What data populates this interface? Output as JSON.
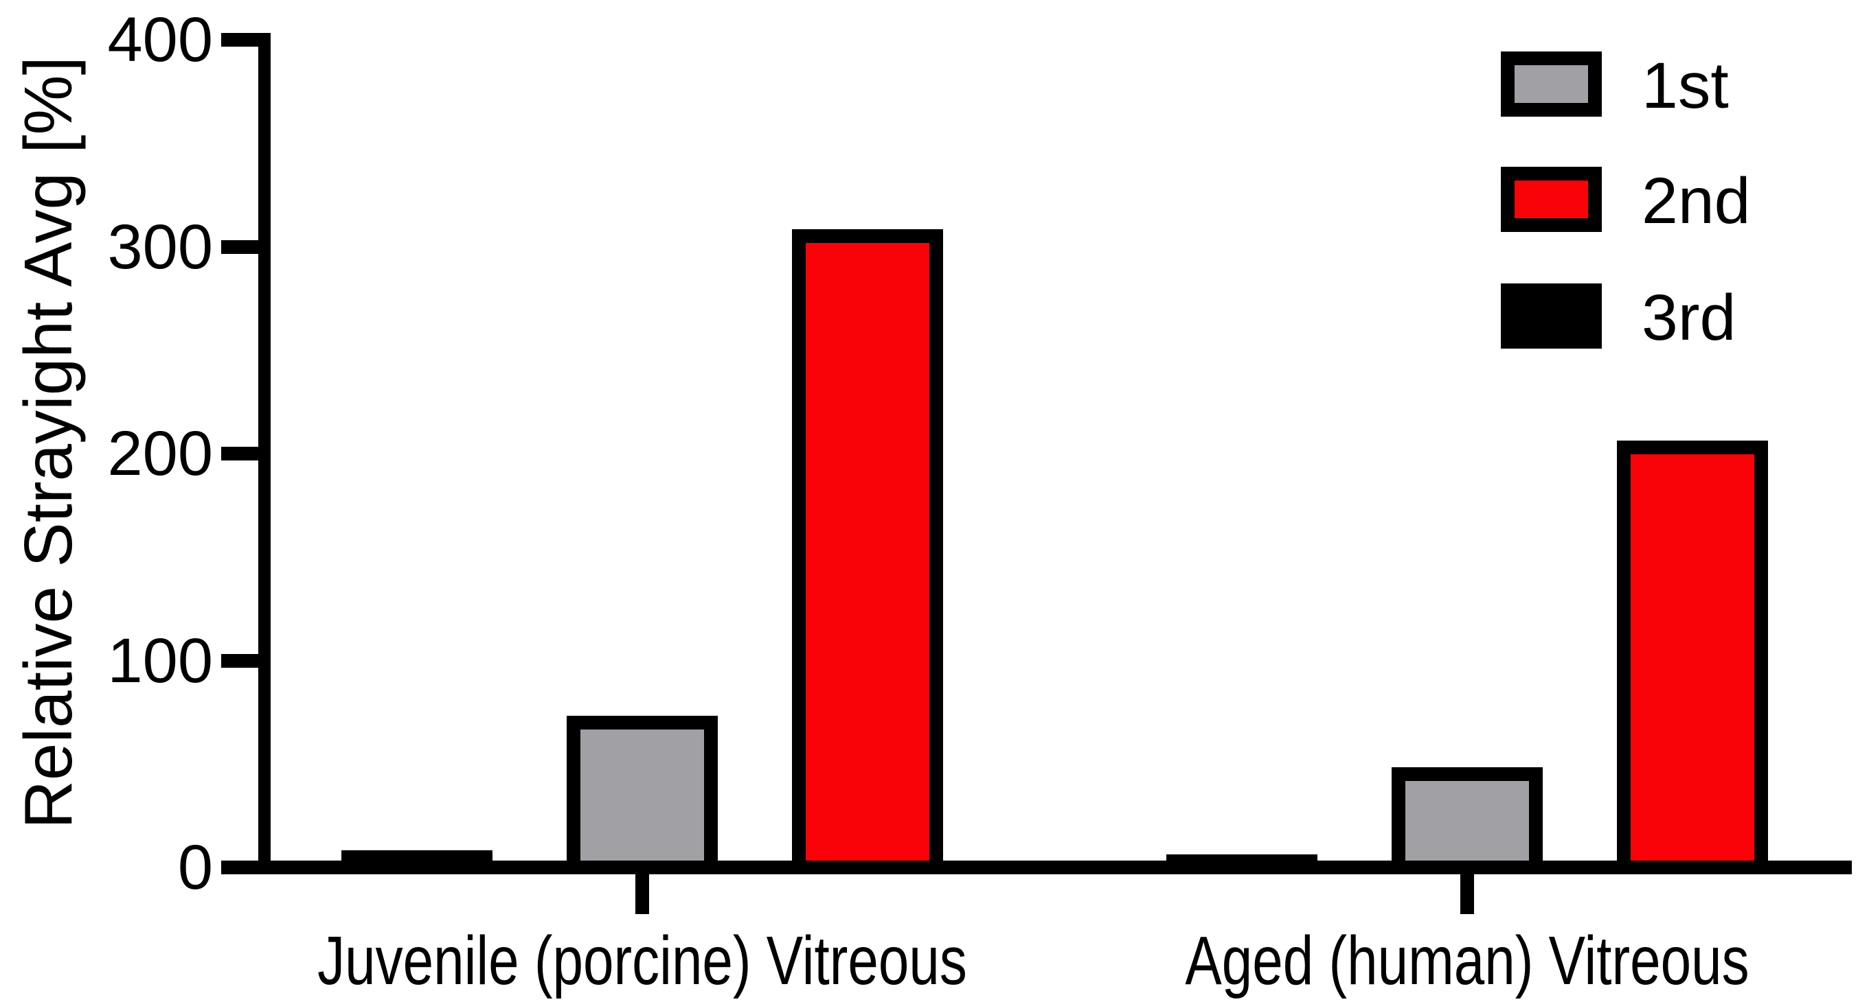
{
  "chart_data": {
    "type": "bar",
    "title": "",
    "ylabel": "Relative Strayight Avg [%]",
    "xlabel": "",
    "ylim": [
      0,
      400
    ],
    "yticks": [
      0,
      100,
      200,
      300,
      400
    ],
    "categories": [
      "Juvenile (porcine) Vitreous",
      "Aged (human) Vitreous"
    ],
    "series": [
      {
        "name": "1st",
        "color": "#A0A0A5",
        "values": [
          70,
          45
        ]
      },
      {
        "name": "2nd",
        "color": "#FA0308",
        "values": [
          305,
          203
        ]
      },
      {
        "name": "3rd",
        "color": "#000000",
        "values": [
          5,
          3
        ]
      }
    ],
    "bar_plot_order": [
      "3rd",
      "1st",
      "2nd"
    ],
    "legend_position": "top-right",
    "grid": false,
    "axis_color": "#000000",
    "bar_border_color": "#000000",
    "background_color": "#FFFFFF"
  }
}
